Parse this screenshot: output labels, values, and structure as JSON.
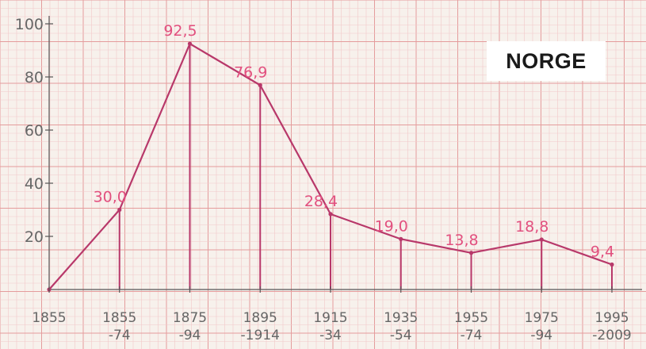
{
  "chart_data": {
    "type": "line",
    "title": "NORGE",
    "x": [
      "1855",
      "1855 -74",
      "1875 -94",
      "1895 -1914",
      "1915 -34",
      "1935 -54",
      "1955 -74",
      "1975 -94",
      "1995 -2009"
    ],
    "x_tick_labels": [
      {
        "line1": "1855",
        "line2": ""
      },
      {
        "line1": "1855",
        "line2": "-74"
      },
      {
        "line1": "1875",
        "line2": "-94"
      },
      {
        "line1": "1895",
        "line2": "-1914"
      },
      {
        "line1": "1915",
        "line2": "-34"
      },
      {
        "line1": "1935",
        "line2": "-54"
      },
      {
        "line1": "1955",
        "line2": "-74"
      },
      {
        "line1": "1975",
        "line2": "-94"
      },
      {
        "line1": "1995",
        "line2": "-2009"
      }
    ],
    "series": [
      {
        "values": [
          0,
          30.0,
          92.5,
          76.9,
          28.4,
          19.0,
          13.8,
          18.8,
          9.4
        ],
        "data_labels": [
          "",
          "30,0",
          "92,5",
          "76,9",
          "28,4",
          "19,0",
          "13,8",
          "18,8",
          "9,4"
        ]
      }
    ],
    "y_ticks": [
      "20",
      "40",
      "60",
      "80",
      "100"
    ],
    "ylim": [
      0,
      100
    ],
    "xlabel": "",
    "ylabel": "",
    "grid": true,
    "colors": {
      "line": "#b8386a",
      "label": "#e2507f",
      "grid_minor": "#f1c9c9",
      "grid_major": "#e49c9c",
      "axis": "#555555",
      "tick_text": "#666666"
    }
  }
}
